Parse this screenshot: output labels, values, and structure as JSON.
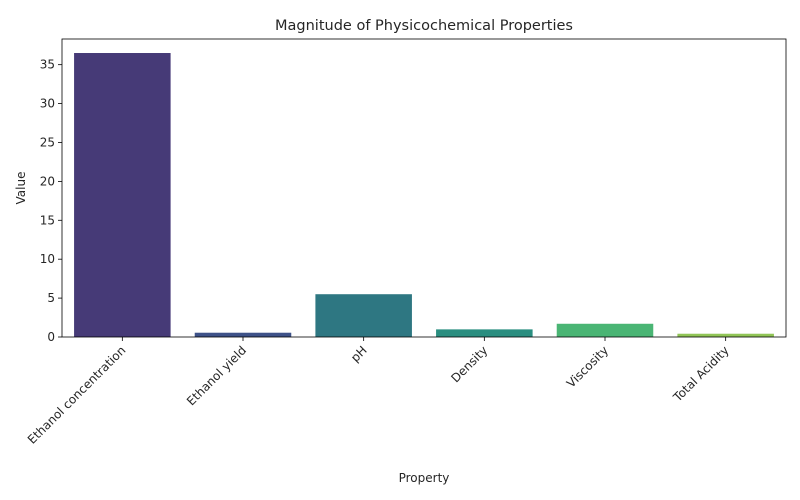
{
  "chart_data": {
    "type": "bar",
    "title": "Magnitude of Physicochemical Properties",
    "xlabel": "Property",
    "ylabel": "Value",
    "categories": [
      "Ethanol concentration",
      "Ethanol yield",
      "pH",
      "Density",
      "Viscosity",
      "Total Acidity"
    ],
    "values": [
      36.5,
      0.55,
      5.5,
      0.98,
      1.7,
      0.42
    ],
    "colors": [
      "#463a77",
      "#3e5288",
      "#2e7782",
      "#2a8e80",
      "#4ab574",
      "#91c557"
    ],
    "ylim": [
      0,
      38.3
    ],
    "yticks": [
      0,
      5,
      10,
      15,
      20,
      25,
      30,
      35
    ],
    "grid": false,
    "legend": "none"
  }
}
